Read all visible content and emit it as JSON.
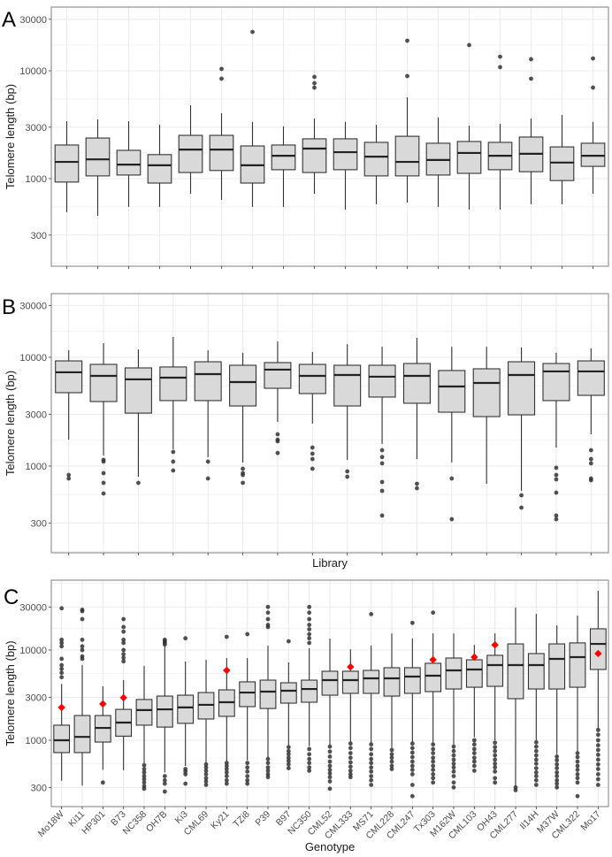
{
  "figure": {
    "panels": [
      "A",
      "B",
      "C"
    ]
  },
  "chart_data": [
    {
      "panel": "A",
      "type": "box",
      "ylabel": "Telomere length (bp)",
      "xlabel": "",
      "yscale": "log10",
      "ylim": [
        170,
        38000
      ],
      "yticks": [
        300,
        1000,
        3000,
        10000,
        30000
      ],
      "ytick_labels": [
        "300",
        "1000",
        "3000",
        "10000",
        "30000"
      ],
      "grid": true,
      "categories": [
        "",
        "",
        "",
        "",
        "",
        "",
        "",
        "",
        "",
        "",
        "",
        "",
        "",
        "",
        "",
        "",
        "",
        ""
      ],
      "boxes": [
        {
          "low": 488,
          "q1": 930,
          "median": 1430,
          "q3": 2050,
          "high": 3410,
          "outliers": []
        },
        {
          "low": 453,
          "q1": 1060,
          "median": 1510,
          "q3": 2380,
          "high": 3540,
          "outliers": []
        },
        {
          "low": 547,
          "q1": 1080,
          "median": 1350,
          "q3": 1830,
          "high": 3410,
          "outliers": []
        },
        {
          "low": 547,
          "q1": 910,
          "median": 1330,
          "q3": 1670,
          "high": 3160,
          "outliers": []
        },
        {
          "low": 725,
          "q1": 1140,
          "median": 1860,
          "q3": 2520,
          "high": 4790,
          "outliers": []
        },
        {
          "low": 636,
          "q1": 1190,
          "median": 1860,
          "q3": 2520,
          "high": 4040,
          "outliers": [
            10400,
            8440
          ]
        },
        {
          "low": 547,
          "q1": 910,
          "median": 1330,
          "q3": 2010,
          "high": 3350,
          "outliers": [
            22900
          ]
        },
        {
          "low": 547,
          "q1": 1210,
          "median": 1630,
          "q3": 2050,
          "high": 3050,
          "outliers": []
        },
        {
          "low": 725,
          "q1": 1140,
          "median": 1900,
          "q3": 2340,
          "high": 3610,
          "outliers": [
            8770,
            7670,
            6980
          ]
        },
        {
          "low": 517,
          "q1": 1210,
          "median": 1760,
          "q3": 2340,
          "high": 3350,
          "outliers": []
        },
        {
          "low": 579,
          "q1": 1060,
          "median": 1600,
          "q3": 2170,
          "high": 3160,
          "outliers": []
        },
        {
          "low": 601,
          "q1": 1060,
          "median": 1430,
          "q3": 2470,
          "high": 5680,
          "outliers": [
            19000,
            8930
          ]
        },
        {
          "low": 547,
          "q1": 1080,
          "median": 1490,
          "q3": 2130,
          "high": 3680,
          "outliers": []
        },
        {
          "low": 517,
          "q1": 1120,
          "median": 1730,
          "q3": 2210,
          "high": 3100,
          "outliers": [
            17300
          ]
        },
        {
          "low": 517,
          "q1": 1210,
          "median": 1630,
          "q3": 2170,
          "high": 3220,
          "outliers": [
            13500,
            10800
          ]
        },
        {
          "low": 579,
          "q1": 1160,
          "median": 1700,
          "q3": 2430,
          "high": 3610,
          "outliers": [
            12800,
            8440
          ]
        },
        {
          "low": 579,
          "q1": 960,
          "median": 1410,
          "q3": 1970,
          "high": 3890,
          "outliers": []
        },
        {
          "low": 725,
          "q1": 1300,
          "median": 1630,
          "q3": 2130,
          "high": 3350,
          "outliers": [
            13000,
            6980
          ]
        }
      ],
      "mean_markers": []
    },
    {
      "panel": "B",
      "type": "box",
      "ylabel": "Telomere length (bp)",
      "xlabel": "Library",
      "yscale": "log10",
      "ylim": [
        170,
        38000
      ],
      "yticks": [
        300,
        1000,
        3000,
        10000,
        30000
      ],
      "ytick_labels": [
        "300",
        "1000",
        "3000",
        "10000",
        "30000"
      ],
      "grid": true,
      "categories": [
        "",
        "",
        "",
        "",
        "",
        "",
        "",
        "",
        "",
        "",
        "",
        "",
        "",
        "",
        "",
        ""
      ],
      "boxes": [
        {
          "low": 1750,
          "q1": 4730,
          "median": 7280,
          "q3": 9270,
          "high": 11600,
          "outliers": [
            829,
            769
          ]
        },
        {
          "low": 1250,
          "q1": 3920,
          "median": 6750,
          "q3": 8610,
          "high": 13500,
          "outliers": [
            1140,
            1100,
            861,
            701,
            560
          ]
        },
        {
          "low": 798,
          "q1": 3070,
          "median": 6270,
          "q3": 7990,
          "high": 11800,
          "outliers": [
            701
          ]
        },
        {
          "low": 1430,
          "q1": 4000,
          "median": 6500,
          "q3": 8150,
          "high": 15400,
          "outliers": [
            1350,
            1100,
            911
          ]
        },
        {
          "low": 1210,
          "q1": 4000,
          "median": 7010,
          "q3": 9100,
          "high": 11600,
          "outliers": [
            1100,
            769
          ]
        },
        {
          "low": 1080,
          "q1": 3570,
          "median": 5920,
          "q3": 8450,
          "high": 11000,
          "outliers": [
            946,
            861,
            829,
            701
          ]
        },
        {
          "low": 2550,
          "q1": 5190,
          "median": 7700,
          "q3": 8940,
          "high": 14000,
          "outliers": [
            1960,
            1750,
            1690,
            1320
          ]
        },
        {
          "low": 2460,
          "q1": 4640,
          "median": 6750,
          "q3": 8610,
          "high": 11200,
          "outliers": [
            1480,
            1300,
            1160,
            946
          ]
        },
        {
          "low": 1140,
          "q1": 3570,
          "median": 6880,
          "q3": 8450,
          "high": 13200,
          "outliers": [
            894,
            798
          ]
        },
        {
          "low": 1600,
          "q1": 4310,
          "median": 6630,
          "q3": 8450,
          "high": 12500,
          "outliers": [
            1400,
            1210,
            1060,
            714,
            592,
            351
          ]
        },
        {
          "low": 1160,
          "q1": 3780,
          "median": 6750,
          "q3": 8770,
          "high": 15100,
          "outliers": [
            688,
            626
          ]
        },
        {
          "low": 1080,
          "q1": 3130,
          "median": 5390,
          "q3": 7560,
          "high": 12500,
          "outliers": [
            769,
            325
          ]
        },
        {
          "low": 688,
          "q1": 2850,
          "median": 5810,
          "q3": 7840,
          "high": 12500,
          "outliers": []
        },
        {
          "low": 592,
          "q1": 2960,
          "median": 6880,
          "q3": 9100,
          "high": 12300,
          "outliers": [
            539,
            415
          ]
        },
        {
          "low": 1480,
          "q1": 4000,
          "median": 7420,
          "q3": 8770,
          "high": 11000,
          "outliers": [
            964,
            829,
            755,
            570,
            351,
            325
          ]
        },
        {
          "low": 1960,
          "q1": 4470,
          "median": 7420,
          "q3": 9270,
          "high": 12100,
          "outliers": [
            1400,
            1160,
            1060,
            769,
            741
          ]
        }
      ],
      "mean_markers": []
    },
    {
      "panel": "C",
      "type": "box",
      "ylabel": "Telomere length (bp)",
      "xlabel": "Genotype",
      "yscale": "log10",
      "ylim": [
        180,
        52000
      ],
      "yticks": [
        300,
        1000,
        3000,
        10000,
        30000
      ],
      "ytick_labels": [
        "300",
        "1000",
        "3000",
        "10000",
        "30000"
      ],
      "grid": true,
      "categories": [
        "Mo18W",
        "Ki11",
        "HP301",
        "B73",
        "NC358",
        "OH7B",
        "Ki3",
        "CML69",
        "Ky21",
        "TZi8",
        "P39",
        "B97",
        "NC350",
        "CML52",
        "CML333",
        "MS71",
        "CML228",
        "CML247",
        "Tx303",
        "M162W",
        "CML103",
        "OH43",
        "CML277",
        "Il14H",
        "M37W",
        "CML322",
        "Mo17"
      ],
      "boxes": [
        {
          "low": 355,
          "q1": 730,
          "median": 1000,
          "q3": 1470,
          "high": 4200,
          "outliers": [
            29000,
            13000,
            12000,
            11000,
            8000,
            6800,
            6200,
            5600,
            5000
          ]
        },
        {
          "low": 315,
          "q1": 730,
          "median": 1090,
          "q3": 1880,
          "high": 6800,
          "outliers": [
            28000,
            27000,
            22000,
            13000,
            11000,
            10000,
            8500,
            8000
          ]
        },
        {
          "low": 470,
          "q1": 955,
          "median": 1370,
          "q3": 1880,
          "high": 3960,
          "outliers": [
            340
          ]
        },
        {
          "low": 465,
          "q1": 1110,
          "median": 1570,
          "q3": 2200,
          "high": 4650,
          "outliers": [
            22000,
            18000,
            16000,
            13000,
            12000,
            10000,
            9000,
            8200,
            7500
          ]
        },
        {
          "low": 560,
          "q1": 1470,
          "median": 2160,
          "q3": 2830,
          "high": 6660,
          "outliers": [
            530,
            480,
            440,
            400,
            370,
            340,
            310,
            290
          ]
        },
        {
          "low": 440,
          "q1": 1400,
          "median": 2200,
          "q3": 3090,
          "high": 11000,
          "outliers": [
            13000,
            12500,
            12000,
            11500,
            400,
            360,
            330,
            270
          ]
        },
        {
          "low": 520,
          "q1": 1540,
          "median": 2310,
          "q3": 3160,
          "high": 7460,
          "outliers": [
            13500,
            480,
            450,
            420,
            330
          ]
        },
        {
          "low": 560,
          "q1": 1720,
          "median": 2470,
          "q3": 3380,
          "high": 7800,
          "outliers": [
            540,
            500,
            460,
            420,
            380,
            350,
            320
          ]
        },
        {
          "low": 580,
          "q1": 1840,
          "median": 2640,
          "q3": 3620,
          "high": 8160,
          "outliers": [
            14000,
            560,
            520,
            480,
            440,
            400,
            360,
            330
          ]
        },
        {
          "low": 600,
          "q1": 2360,
          "median": 3380,
          "q3": 4440,
          "high": 8160,
          "outliers": [
            15000,
            560,
            500,
            450,
            400,
            360,
            330
          ]
        },
        {
          "low": 650,
          "q1": 2250,
          "median": 3460,
          "q3": 4640,
          "high": 11200,
          "outliers": [
            30000,
            26000,
            22000,
            19000,
            18000,
            620,
            560,
            500,
            460,
            420,
            390
          ]
        },
        {
          "low": 880,
          "q1": 2580,
          "median": 3540,
          "q3": 4340,
          "high": 7290,
          "outliers": [
            12500,
            840,
            760,
            700,
            640,
            590,
            540,
            490
          ]
        },
        {
          "low": 860,
          "q1": 2640,
          "median": 3700,
          "q3": 4640,
          "high": 10500,
          "outliers": [
            30000,
            26000,
            22000,
            19000,
            17000,
            15000,
            13500,
            12000,
            800,
            700,
            620,
            560,
            500,
            460
          ]
        },
        {
          "low": 900,
          "q1": 3160,
          "median": 4640,
          "q3": 5820,
          "high": 13400,
          "outliers": [
            850,
            750,
            660,
            580,
            520,
            470,
            430,
            390,
            350,
            290
          ]
        },
        {
          "low": 960,
          "q1": 3310,
          "median": 4640,
          "q3": 5820,
          "high": 10200,
          "outliers": [
            920,
            820,
            720,
            640,
            570,
            510,
            460,
            420,
            390
          ]
        },
        {
          "low": 940,
          "q1": 3310,
          "median": 4860,
          "q3": 5950,
          "high": 11200,
          "outliers": [
            25000,
            900,
            800,
            700,
            620,
            560,
            500,
            450,
            400,
            360,
            320
          ]
        },
        {
          "low": 820,
          "q1": 3090,
          "median": 4860,
          "q3": 6370,
          "high": 15300,
          "outliers": [
            780,
            700,
            640,
            580,
            520,
            480
          ]
        },
        {
          "low": 960,
          "q1": 3310,
          "median": 5080,
          "q3": 6370,
          "high": 13400,
          "outliers": [
            20000,
            920,
            820,
            730,
            650,
            580,
            520,
            470,
            420,
            320,
            240
          ]
        },
        {
          "low": 950,
          "q1": 3460,
          "median": 5200,
          "q3": 7130,
          "high": 15300,
          "outliers": [
            26000,
            900,
            800,
            720,
            640,
            580,
            520,
            470,
            420,
            380,
            340
          ]
        },
        {
          "low": 900,
          "q1": 3700,
          "median": 5950,
          "q3": 8160,
          "high": 15300,
          "outliers": [
            850,
            760,
            680,
            610,
            550,
            500,
            450,
            400,
            340,
            300
          ]
        },
        {
          "low": 1080,
          "q1": 3870,
          "median": 6090,
          "q3": 7800,
          "high": 11400,
          "outliers": [
            1000,
            900,
            800,
            720,
            640,
            580,
            520,
            460
          ]
        },
        {
          "low": 1000,
          "q1": 3960,
          "median": 6810,
          "q3": 8740,
          "high": 15300,
          "outliers": [
            940,
            840,
            760,
            680,
            610,
            550,
            500,
            450,
            380,
            340
          ]
        },
        {
          "low": 310,
          "q1": 2890,
          "median": 6810,
          "q3": 11700,
          "high": 29600,
          "outliers": [
            300,
            280
          ]
        },
        {
          "low": 1000,
          "q1": 3700,
          "median": 6810,
          "q3": 9140,
          "high": 25200,
          "outliers": [
            950,
            850,
            760,
            680,
            610,
            550,
            490,
            440,
            400,
            360,
            320
          ]
        },
        {
          "low": 700,
          "q1": 3700,
          "median": 7980,
          "q3": 11700,
          "high": 18800,
          "outliers": [
            660,
            600,
            540,
            490,
            440,
            400,
            360,
            330,
            300
          ]
        },
        {
          "low": 760,
          "q1": 3870,
          "median": 8350,
          "q3": 12000,
          "high": 24100,
          "outliers": [
            720,
            650,
            580,
            520,
            470,
            420,
            380,
            340,
            240
          ]
        },
        {
          "low": 1350,
          "q1": 6090,
          "median": 11700,
          "q3": 17200,
          "high": 45400,
          "outliers": [
            1300,
            1150,
            1000,
            880,
            780,
            690,
            610,
            540,
            480,
            420,
            370,
            320
          ]
        }
      ],
      "mean_markers": [
        {
          "category": "Mo18W",
          "value": 2310
        },
        {
          "category": "HP301",
          "value": 2530
        },
        {
          "category": "B73",
          "value": 2960
        },
        {
          "category": "Ky21",
          "value": 5950
        },
        {
          "category": "CML333",
          "value": 6510
        },
        {
          "category": "Tx303",
          "value": 7800
        },
        {
          "category": "CML103",
          "value": 8350
        },
        {
          "category": "OH43",
          "value": 11400
        },
        {
          "category": "Mo17",
          "value": 9140
        }
      ],
      "mean_marker_color": "#ff0000"
    }
  ],
  "colors": {
    "box_fill": "#d9d9d9",
    "box_stroke": "#333333",
    "outlier": "#333333",
    "grid": "#ebebeb",
    "panel_border": "#7f7f7f",
    "mean_marker": "#ff0000"
  }
}
